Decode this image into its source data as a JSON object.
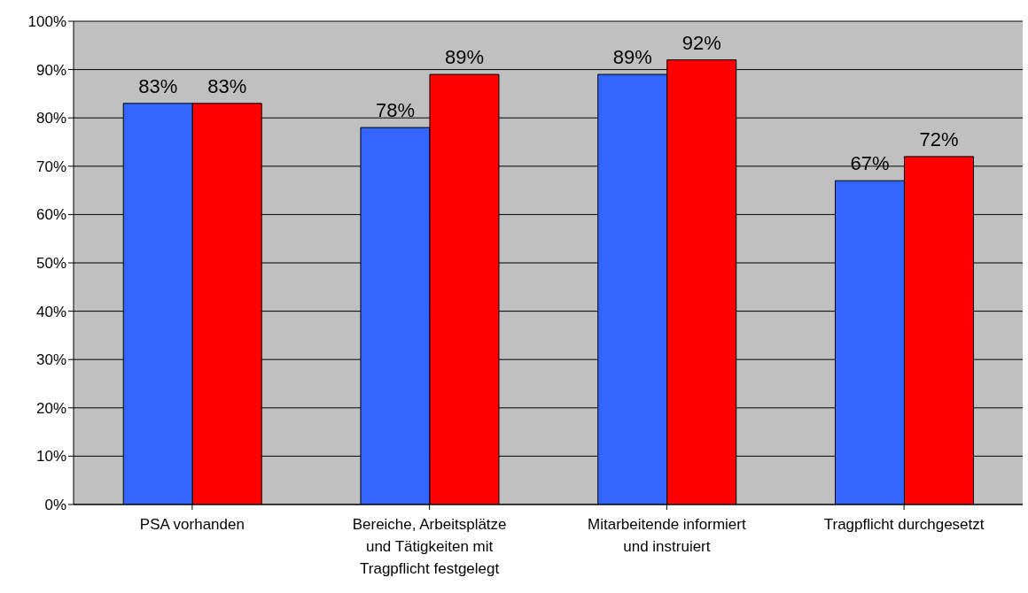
{
  "chart_data": {
    "type": "bar",
    "categories": [
      "PSA vorhanden",
      "Bereiche, Arbeitsplätze und Tätigkeiten mit Tragpflicht festgelegt",
      "Mitarbeitende informiert und instruiert",
      "Tragpflicht durchgesetzt"
    ],
    "series": [
      {
        "color": "#3366ff",
        "values": [
          83,
          78,
          89,
          67
        ],
        "value_labels": [
          "83%",
          "78%",
          "89%",
          "67%"
        ]
      },
      {
        "color": "#ff0000",
        "values": [
          83,
          89,
          92,
          72
        ],
        "value_labels": [
          "83%",
          "89%",
          "92%",
          "72%"
        ]
      }
    ],
    "ylim": [
      0,
      100
    ],
    "yticks": [
      {
        "value": 0,
        "label": "0%"
      },
      {
        "value": 10,
        "label": "10%"
      },
      {
        "value": 20,
        "label": "20%"
      },
      {
        "value": 30,
        "label": "30%"
      },
      {
        "value": 40,
        "label": "40%"
      },
      {
        "value": 50,
        "label": "50%"
      },
      {
        "value": 60,
        "label": "60%"
      },
      {
        "value": 70,
        "label": "70%"
      },
      {
        "value": 80,
        "label": "80%"
      },
      {
        "value": 90,
        "label": "90%"
      },
      {
        "value": 100,
        "label": "100%"
      }
    ],
    "grid": "y",
    "legend": false
  }
}
